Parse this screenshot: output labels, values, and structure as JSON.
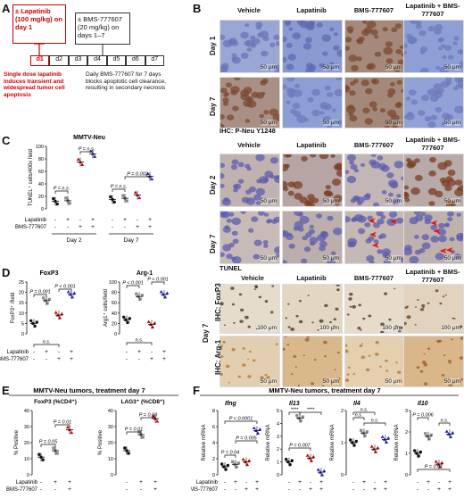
{
  "panel_labels": {
    "a": "A",
    "b": "B",
    "c": "C",
    "d": "D",
    "e": "E",
    "f": "F"
  },
  "panelA": {
    "lap_box": "± Lapatinib (100 mg/kg) on day 1",
    "bms_box": "± BMS-777607 (20 mg/kg) on days 1–7",
    "days": [
      "d1",
      "d2",
      "d3",
      "d4",
      "d5",
      "d6",
      "d7"
    ],
    "note_left": "Single dose lapatinib induces transient and widespread tumor cell apoptosis",
    "note_right": "Daily BMS-777607 for 7 days blocks apoptotic cell clearance, resulting in secondary necrosis"
  },
  "panelB": {
    "columns": [
      "Vehicle",
      "Lapatinib",
      "BMS-777607",
      "Lapatinib + BMS-777607"
    ],
    "rows_top": [
      "Day 1",
      "Day 7"
    ],
    "ihc_title": "IHC: P-Neu Y1248",
    "rows_mid": [
      "Day 2",
      "Day 7"
    ],
    "tunel_title": "TUNEL",
    "columns_bottom": [
      "Vehicle",
      "Lapatinib",
      "BMS-777607",
      "Lapatinib + BMS-777607"
    ],
    "rows_bottom": [
      "IHC: FoxP3",
      "IHC: Arg-1"
    ],
    "day_bottom": "Day 7",
    "scale_50": "50 μm",
    "scale_100": "100 μm",
    "scale_100b": "100 μm",
    "colors": {
      "tissue_blue": "#8f9fd1",
      "tissue_brown": "#8b4a2a",
      "tissue_light": "#e9dcc6"
    }
  },
  "panelC": {
    "title": "MMTV-Neu",
    "ylabel": "TUNEL⁺ cells/400x field",
    "p1": "P = n.s.",
    "p2": "P = n.s.",
    "p3": "P = 0.002",
    "p4": "P = n.s.",
    "row1": "Lapatinib",
    "row2": "BMS-777607",
    "signs1": [
      "-",
      "+",
      "-",
      "+",
      "-",
      "+",
      "-",
      "+"
    ],
    "signs2": [
      "-",
      "-",
      "+",
      "+",
      "-",
      "-",
      "+",
      "+"
    ],
    "groups": [
      "Day 2",
      "Day 7"
    ],
    "ticks": [
      "0",
      "20",
      "40",
      "60",
      "80",
      "100"
    ]
  },
  "panelD": {
    "title1": "FoxP3",
    "ylabel1": "FoxP3⁺ /field",
    "ticks1": [
      "0",
      "5",
      "10",
      "15",
      "20",
      "25"
    ],
    "title2": "Arg-1",
    "ylabel2": "Arg1⁺ cells/field",
    "ticks2": [
      "0",
      "20",
      "40",
      "60",
      "80",
      "100"
    ],
    "p_a": "P = 0.001",
    "p_b": "P < 0.001",
    "p_c": "n.s.",
    "p_d": "P < 0.001",
    "p_e": "P < 0.001",
    "p_f": "n.s.",
    "row1": "Lapatinib",
    "row2": "BMS-777607",
    "signs1": [
      "-",
      "+",
      "-",
      "+"
    ],
    "signs2": [
      "-",
      "-",
      "+",
      "+"
    ]
  },
  "panelE": {
    "header": "MMTV-Neu tumors, treatment day 7",
    "title1": "FoxP3 (%CD4⁺)",
    "title2": "LAG3⁺ (%CD8⁺)",
    "ylabel": "% Positive",
    "ticks1": [
      "0",
      "10",
      "20",
      "30",
      "40"
    ],
    "ticks2": [
      "0",
      "10",
      "20",
      "30",
      "40"
    ],
    "p1": "P = 0.01",
    "p2": "P = 0.05",
    "p3": "P = 0.03",
    "p4": "P = 0.01",
    "row1": "Lapatinib",
    "row2": "BMS-777607",
    "signs1": [
      "-",
      "+",
      "+"
    ],
    "signs2": [
      "-",
      "-",
      "+"
    ]
  },
  "panelF": {
    "header": "MMTV-Neu tumors, treatment day 7",
    "ylabel": "Relative mRNA",
    "genes": [
      "Ifng",
      "Il13",
      "Il4",
      "Il10"
    ],
    "ifng_ticks": [
      "0",
      "2",
      "4",
      "6",
      "8"
    ],
    "il13_ticks": [
      "0",
      "1",
      "2",
      "3",
      "4",
      "5"
    ],
    "il4_ticks": [
      "0",
      "1",
      "2"
    ],
    "il10_ticks": [
      "0",
      "1",
      "2",
      "3"
    ],
    "p_ifng1": "P < 0.0001",
    "p_ifng2": "P = 0.005",
    "p_ifng3": "P = 0.04",
    "p_il13a": "****",
    "p_il13b": "****",
    "p_il13c": "P = 0.007",
    "p_il4a": "n.s.",
    "p_il4b": "n.s.",
    "p_il4c": "n.s.",
    "p_il10a": "P = 0.006",
    "p_il10b": "n.s.",
    "p_il10c": "P = 0.01",
    "row1": "Lapatinib",
    "row2": "BMS-777607",
    "signs1": [
      "-",
      "+",
      "-",
      "+"
    ],
    "signs2": [
      "-",
      "-",
      "+",
      "+"
    ]
  },
  "chart_data": [
    {
      "type": "scatter",
      "title": "MMTV-Neu",
      "ylabel": "TUNEL⁺ cells/400x field",
      "ylim": [
        0,
        100
      ],
      "categories": [
        "Day 2 Veh",
        "Day 2 Lap",
        "Day 2 BMS",
        "Day 2 Lap+BMS",
        "Day 7 Veh",
        "Day 7 Lap",
        "Day 7 BMS",
        "Day 7 Lap+BMS"
      ],
      "values": [
        12,
        13,
        75,
        88,
        15,
        17,
        22,
        52
      ]
    },
    {
      "type": "scatter",
      "title": "FoxP3",
      "ylabel": "FoxP3⁺ /field",
      "ylim": [
        0,
        25
      ],
      "categories": [
        "Veh",
        "Lap",
        "BMS",
        "Lap+BMS"
      ],
      "values": [
        5,
        16,
        9,
        19
      ]
    },
    {
      "type": "scatter",
      "title": "Arg-1",
      "ylabel": "Arg1⁺ cells/field",
      "ylim": [
        0,
        100
      ],
      "categories": [
        "Veh",
        "Lap",
        "BMS",
        "Lap+BMS"
      ],
      "values": [
        27,
        72,
        18,
        76
      ]
    },
    {
      "type": "scatter",
      "title": "FoxP3 (%CD4⁺)",
      "ylabel": "% Positive",
      "ylim": [
        0,
        40
      ],
      "categories": [
        "Veh",
        "Lap",
        "Lap+BMS"
      ],
      "values": [
        11,
        15,
        28
      ]
    },
    {
      "type": "scatter",
      "title": "LAG3⁺ (%CD8⁺)",
      "ylabel": "% Positive",
      "ylim": [
        0,
        40
      ],
      "categories": [
        "Veh",
        "Lap",
        "Lap+BMS"
      ],
      "values": [
        15,
        25,
        35
      ]
    },
    {
      "type": "scatter",
      "title": "Ifng",
      "ylabel": "Relative mRNA",
      "ylim": [
        0,
        8
      ],
      "categories": [
        "Veh",
        "Lap",
        "BMS",
        "Lap+BMS"
      ],
      "values": [
        1,
        1.3,
        1.6,
        5.5
      ]
    },
    {
      "type": "scatter",
      "title": "Il13",
      "ylabel": "Relative mRNA",
      "ylim": [
        0,
        5
      ],
      "categories": [
        "Veh",
        "Lap",
        "BMS",
        "Lap+BMS"
      ],
      "values": [
        1,
        4.4,
        1.3,
        0.2
      ]
    },
    {
      "type": "scatter",
      "title": "Il4",
      "ylabel": "Relative mRNA",
      "ylim": [
        0,
        2
      ],
      "categories": [
        "Veh",
        "Lap",
        "BMS",
        "Lap+BMS"
      ],
      "values": [
        1,
        1.3,
        0.8,
        1.1
      ]
    },
    {
      "type": "scatter",
      "title": "Il10",
      "ylabel": "Relative mRNA",
      "ylim": [
        0,
        3
      ],
      "categories": [
        "Veh",
        "Lap",
        "BMS",
        "Lap+BMS"
      ],
      "values": [
        1,
        1.8,
        0.5,
        1.9
      ]
    }
  ]
}
